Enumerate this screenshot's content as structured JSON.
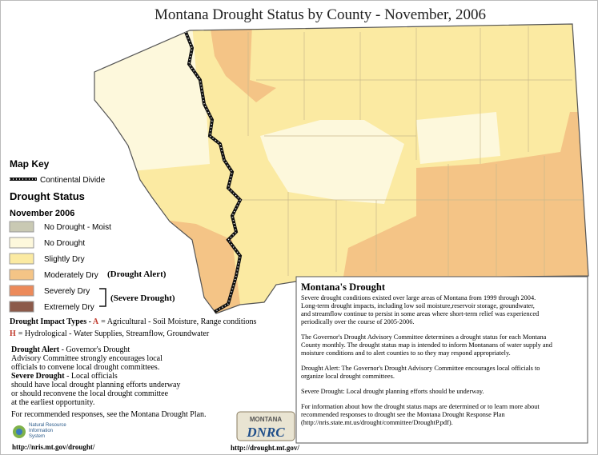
{
  "title": "Montana Drought Status by County - November, 2006",
  "map_key": {
    "heading": "Map Key",
    "continental_divide": "Continental Divide",
    "status_heading": "Drought Status",
    "period": "November 2006",
    "items": [
      "No Drought - Moist",
      "No Drought",
      "Slightly Dry",
      "Moderately Dry",
      "Severely Dry",
      "Extremely Dry"
    ],
    "drought_alert": "(Drought Alert)",
    "severe_drought": "(Severe Drought)"
  },
  "impact_types": {
    "heading": "Drought Impact Types - ",
    "agricultural": {
      "code": "A",
      "text": "= Agricultural - Soil Moisture, Range conditions"
    },
    "hydrological": {
      "code": "H",
      "text": "= Hydrological - Water Supplies, Streamflow, Groundwater"
    }
  },
  "notes": [
    {
      "term": "Drought Alert",
      "lines": [
        " - Governor's Drought",
        "Advisory Committee strongly encourages local",
        "officials to convene local drought committees."
      ]
    },
    {
      "term": "Severe Drought",
      "lines": [
        " - Local officials",
        "should have local drought planning efforts underway",
        "or should reconvene the local drought committee",
        "at the earliest opportunity."
      ]
    }
  ],
  "plan_note": "For recommended responses, see the Montana Drought Plan.",
  "logos": {
    "nris": [
      "Natural Resource",
      "Information",
      "System"
    ],
    "dnrc": [
      "MONTANA",
      "DNRC"
    ]
  },
  "links": {
    "nris": "http://nris.mt.gov/drought/",
    "dnrc": "http://drought.mt.gov/"
  },
  "info_box": {
    "title": "Montana's Drought",
    "paragraphs": [
      [
        "Severe drought conditions existed over large areas of Montana from 1999 through 2004.",
        "Long-term drought impacts, including low soil moisture,reservoir storage, groundwater,",
        "and streamflow continue to persist in some areas where short-term relief was experienced",
        "periodically over the course of 2005-2006."
      ],
      [
        "The Governor's Drought Advisory Committee determines a drought status for each Montana",
        "County monthly. The drought status map is intended to inform Montanans of water supply and",
        "moisture conditions and to alert counties to so they may respond appropriately."
      ],
      [
        "Drought Alert: The Governor's Drought Advisory Committee encourages local officials to",
        "organize local drought committees."
      ],
      [
        "Severe Drought: Local drought planning efforts should be underway."
      ],
      [
        "For information about how the drought status maps are determined or to learn more about",
        "recommended responses to drought see the Montana Drought Response Plan",
        "(http://nris.state.mt.us/drought/committee/DroughtP.pdf)."
      ]
    ]
  }
}
